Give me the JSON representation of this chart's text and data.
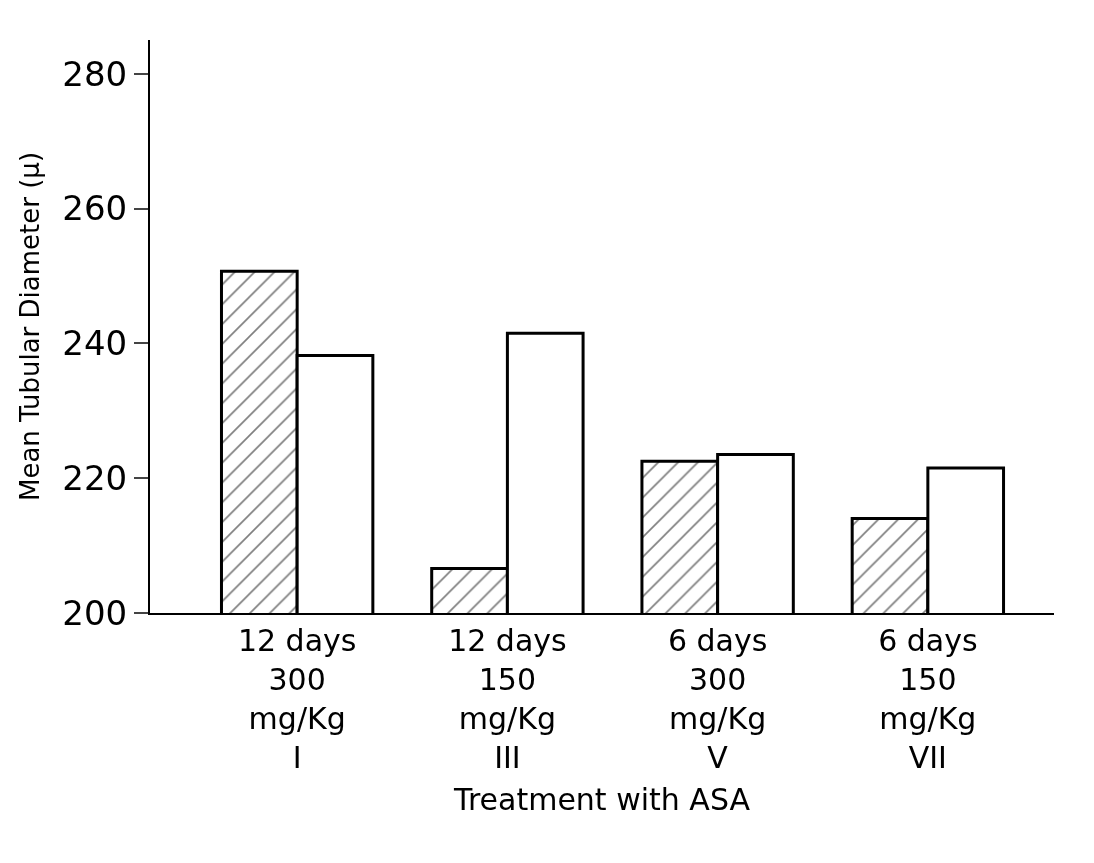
{
  "chart_data": {
    "type": "bar",
    "xlabel": "Treatment with ASA",
    "ylabel": "Mean Tubular Diameter (μ)",
    "categories": [
      "12 days\n300\nmg/Kg\nI",
      "12 days\n150\nmg/Kg\nIII",
      "6 days\n300\nmg/Kg\nV",
      "6 days\n150\nmg/Kg\nVII"
    ],
    "series": [
      {
        "color": "#000000",
        "values": [
          250.7,
          206.6,
          222.5,
          214
        ]
      },
      {
        "color": "#ffffff",
        "values": [
          238.2,
          241.5,
          223.5,
          221.5
        ]
      }
    ],
    "ylim": [
      200,
      285
    ],
    "yticks": [
      200,
      220,
      240,
      260,
      280
    ]
  }
}
